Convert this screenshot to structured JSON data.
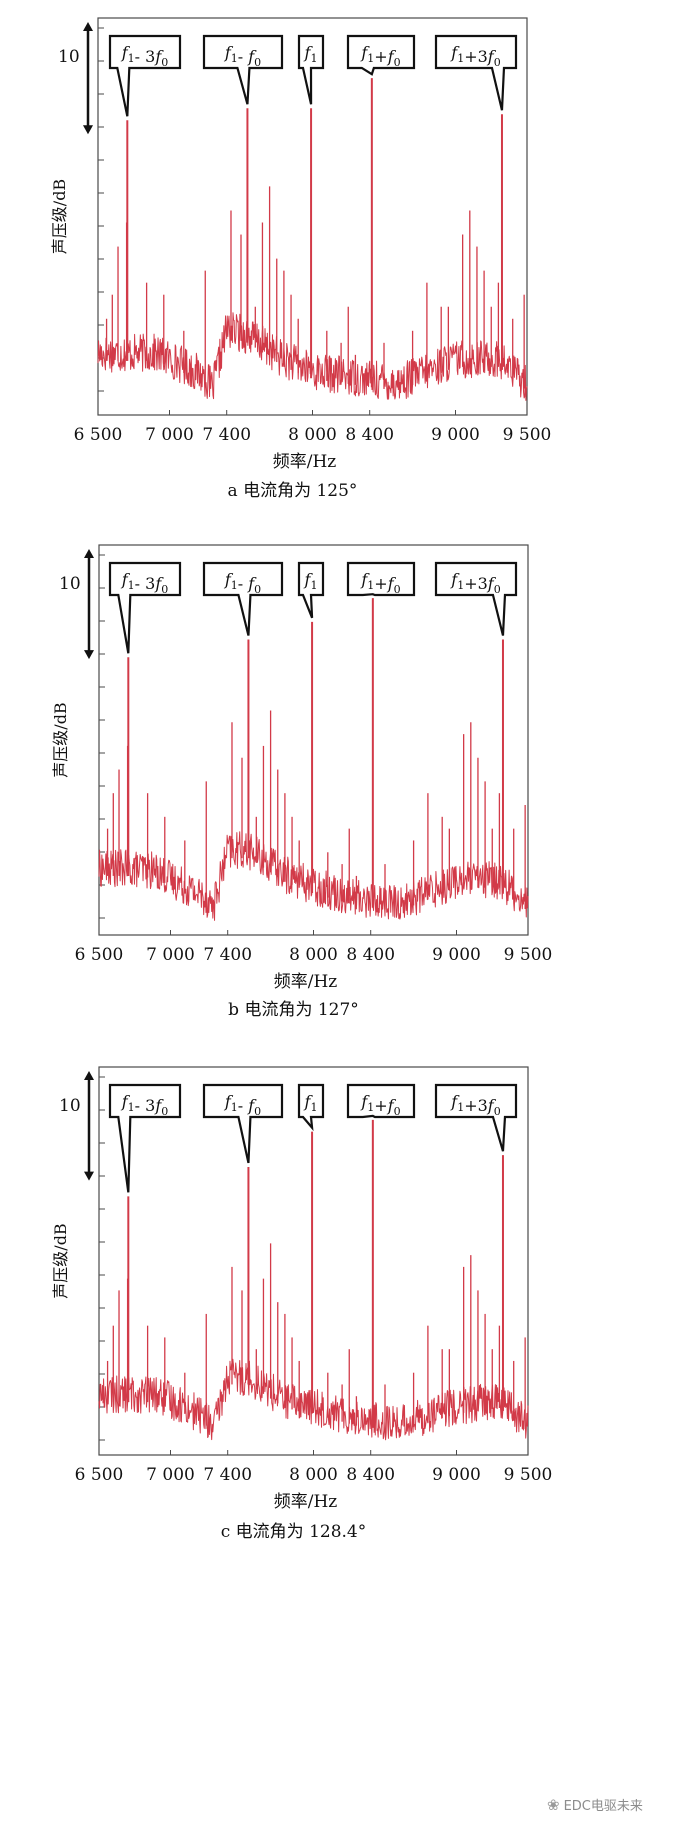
{
  "colors": {
    "spectrum": "#d23a48",
    "axis": "#4a4a4a",
    "text": "#111111"
  },
  "chart_data": [
    {
      "type": "line",
      "panel": "a",
      "caption": "a 电流角为 125°",
      "ylabel": "声压级/dB",
      "xlabel": "频率/Hz",
      "xlim": [
        6500,
        9500
      ],
      "xticks": [
        6500,
        7000,
        7400,
        8000,
        8400,
        9000,
        9500
      ],
      "xtick_labels": [
        "6 500",
        "7 000",
        "7 400",
        "8 000",
        "8 400",
        "9 000",
        "9 500"
      ],
      "yrange_db": [
        0,
        33
      ],
      "scale_marker": {
        "label": "10",
        "span_db": 10
      },
      "baseline": {
        "x": [
          6500,
          6700,
          6900,
          7100,
          7250,
          7300,
          7400,
          7550,
          7800,
          8000,
          8300,
          8600,
          9000,
          9300,
          9500
        ],
        "y": [
          4.5,
          4.5,
          4.5,
          3.5,
          2.5,
          1.5,
          6.5,
          6.0,
          4.0,
          3.0,
          2.5,
          2.0,
          4.0,
          4.0,
          2.0
        ]
      },
      "peaks": {
        "x": [
          6560,
          6600,
          6640,
          6700,
          6840,
          6960,
          7100,
          7250,
          7430,
          7500,
          7600,
          7650,
          7700,
          7750,
          7800,
          7850,
          7900,
          8100,
          8200,
          8250,
          8300,
          8500,
          8700,
          8800,
          8900,
          8950,
          9050,
          9100,
          9150,
          9200,
          9250,
          9300,
          9400,
          9480
        ],
        "y": [
          8,
          10,
          14,
          16,
          11,
          10,
          7,
          12,
          17,
          15,
          9,
          16,
          19,
          13,
          12,
          10,
          8,
          7,
          6,
          9,
          5,
          6,
          7,
          11,
          9,
          9,
          15,
          17,
          14,
          12,
          9,
          11,
          8,
          10
        ]
      },
      "labeled_peaks": [
        {
          "label": "f₁- 3f₀",
          "x": 6705,
          "y": 24.5
        },
        {
          "label": "f₁- f₀",
          "x": 7545,
          "y": 25.5
        },
        {
          "label": "f₁",
          "x": 7990,
          "y": 25.5
        },
        {
          "label": "f₁+f₀",
          "x": 8415,
          "y": 28.0
        },
        {
          "label": "f₁+3f₀",
          "x": 9325,
          "y": 25.0
        }
      ]
    },
    {
      "type": "line",
      "panel": "b",
      "caption": "b 电流角为 127°",
      "ylabel": "声压级/dB",
      "xlabel": "频率/Hz",
      "xlim": [
        6500,
        9500
      ],
      "xticks": [
        6500,
        7000,
        7400,
        8000,
        8400,
        9000,
        9500
      ],
      "xtick_labels": [
        "6 500",
        "7 000",
        "7 400",
        "8 000",
        "8 400",
        "9 000",
        "9 500"
      ],
      "yrange_db": [
        0,
        33
      ],
      "scale_marker": {
        "label": "10",
        "span_db": 10
      },
      "baseline": {
        "x": [
          6500,
          6700,
          6900,
          7100,
          7250,
          7300,
          7400,
          7550,
          7800,
          8000,
          8300,
          8600,
          9000,
          9300,
          9500
        ],
        "y": [
          5.0,
          5.0,
          4.8,
          3.5,
          2.5,
          1.8,
          6.5,
          6.5,
          4.5,
          3.5,
          2.5,
          2.0,
          4.0,
          4.0,
          2.0
        ]
      },
      "peaks": {
        "x": [
          6560,
          6600,
          6640,
          6700,
          6840,
          6960,
          7100,
          7250,
          7430,
          7500,
          7600,
          7650,
          7700,
          7750,
          7800,
          7850,
          7900,
          8100,
          8200,
          8250,
          8300,
          8500,
          8700,
          8800,
          8900,
          8950,
          9050,
          9100,
          9150,
          9200,
          9250,
          9300,
          9400,
          9480
        ],
        "y": [
          9,
          12,
          14,
          16,
          12,
          10,
          8,
          13,
          18,
          15,
          10,
          16,
          19,
          14,
          12,
          10,
          8,
          7,
          6,
          9,
          5,
          6,
          8,
          12,
          10,
          9,
          17,
          18,
          15,
          13,
          9,
          12,
          9,
          11
        ]
      },
      "labeled_peaks": [
        {
          "label": "f₁- 3f₀",
          "x": 6705,
          "y": 23.5
        },
        {
          "label": "f₁- f₀",
          "x": 7545,
          "y": 25.0
        },
        {
          "label": "f₁",
          "x": 7990,
          "y": 26.5
        },
        {
          "label": "f₁+f₀",
          "x": 8415,
          "y": 28.5
        },
        {
          "label": "f₁+3f₀",
          "x": 9325,
          "y": 25.0
        }
      ]
    },
    {
      "type": "line",
      "panel": "c",
      "caption": "c 电流角为 128.4°",
      "ylabel": "声压级/dB",
      "xlabel": "频率/Hz",
      "xlim": [
        6500,
        9500
      ],
      "xticks": [
        6500,
        7000,
        7400,
        8000,
        8400,
        9000,
        9500
      ],
      "xtick_labels": [
        "6 500",
        "7 000",
        "7 400",
        "8 000",
        "8 400",
        "9 000",
        "9 500"
      ],
      "yrange_db": [
        0,
        33
      ],
      "scale_marker": {
        "label": "10",
        "span_db": 10
      },
      "baseline": {
        "x": [
          6500,
          6700,
          6900,
          7100,
          7250,
          7300,
          7400,
          7550,
          7800,
          8000,
          8300,
          8600,
          9000,
          9300,
          9500
        ],
        "y": [
          4.5,
          4.5,
          4.5,
          3.5,
          2.5,
          1.5,
          6.0,
          6.0,
          4.0,
          3.5,
          2.5,
          2.0,
          3.5,
          4.0,
          2.0
        ]
      },
      "peaks": {
        "x": [
          6560,
          6600,
          6640,
          6700,
          6840,
          6960,
          7100,
          7250,
          7430,
          7500,
          7600,
          7650,
          7700,
          7750,
          7800,
          7850,
          7900,
          8100,
          8200,
          8250,
          8300,
          8500,
          8700,
          8800,
          8900,
          8950,
          9050,
          9100,
          9150,
          9200,
          9250,
          9300,
          9400,
          9480
        ],
        "y": [
          8,
          11,
          14,
          15,
          11,
          10,
          7,
          12,
          16,
          14,
          9,
          15,
          18,
          13,
          12,
          10,
          8,
          7,
          6,
          9,
          5,
          6,
          7,
          11,
          9,
          9,
          16,
          17,
          14,
          12,
          9,
          11,
          8,
          10
        ]
      },
      "labeled_peaks": [
        {
          "label": "f₁- 3f₀",
          "x": 6705,
          "y": 22.0
        },
        {
          "label": "f₁- f₀",
          "x": 7545,
          "y": 24.5
        },
        {
          "label": "f₁",
          "x": 7990,
          "y": 27.5
        },
        {
          "label": "f₁+f₀",
          "x": 8415,
          "y": 28.5
        },
        {
          "label": "f₁+3f₀",
          "x": 9325,
          "y": 25.5
        }
      ]
    }
  ],
  "watermark": {
    "text": "EDC电驱未来"
  }
}
